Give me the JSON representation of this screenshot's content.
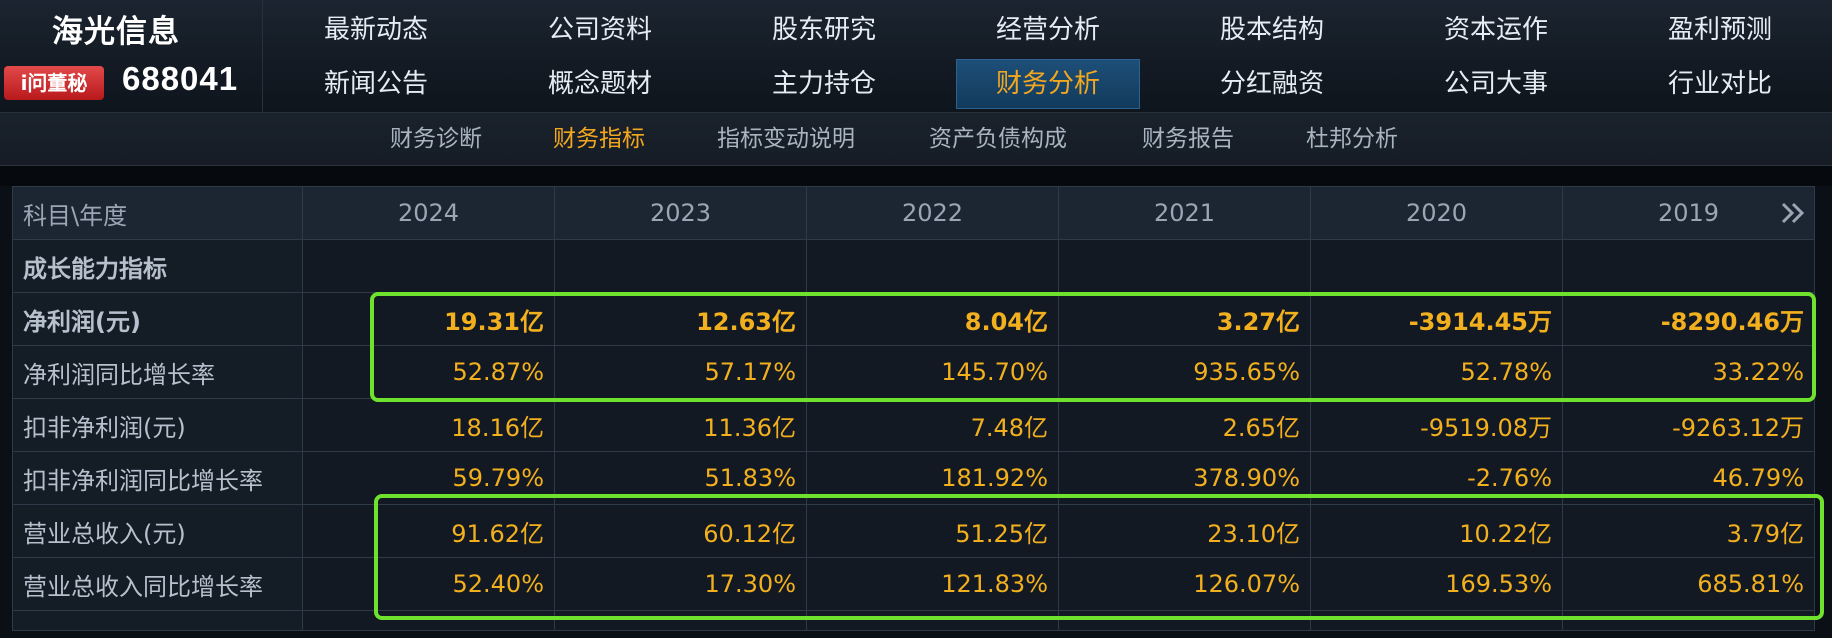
{
  "header": {
    "company_name": "海光信息",
    "badge": "i问董秘",
    "stock_code": "688041",
    "nav_row1": [
      "最新动态",
      "公司资料",
      "股东研究",
      "经营分析",
      "股本结构",
      "资本运作",
      "盈利预测"
    ],
    "nav_row2": [
      "新闻公告",
      "概念题材",
      "主力持仓",
      "财务分析",
      "分红融资",
      "公司大事",
      "行业对比"
    ],
    "active_nav": "财务分析"
  },
  "subnav": {
    "items": [
      "财务诊断",
      "财务指标",
      "指标变动说明",
      "资产负债构成",
      "财务报告",
      "杜邦分析"
    ],
    "active": "财务指标"
  },
  "table": {
    "corner": "科目\\年度",
    "years": [
      "2024",
      "2023",
      "2022",
      "2021",
      "2020",
      "2019"
    ],
    "rows": [
      {
        "label": "成长能力指标",
        "values": [
          "",
          "",
          "",
          "",
          "",
          ""
        ]
      },
      {
        "label": "净利润(元)",
        "values": [
          "19.31亿",
          "12.63亿",
          "8.04亿",
          "3.27亿",
          "-3914.45万",
          "-8290.46万"
        ]
      },
      {
        "label": "净利润同比增长率",
        "values": [
          "52.87%",
          "57.17%",
          "145.70%",
          "935.65%",
          "52.78%",
          "33.22%"
        ]
      },
      {
        "label": "扣非净利润(元)",
        "values": [
          "18.16亿",
          "11.36亿",
          "7.48亿",
          "2.65亿",
          "-9519.08万",
          "-9263.12万"
        ]
      },
      {
        "label": "扣非净利润同比增长率",
        "values": [
          "59.79%",
          "51.83%",
          "181.92%",
          "378.90%",
          "-2.76%",
          "46.79%"
        ]
      },
      {
        "label": "营业总收入(元)",
        "values": [
          "91.62亿",
          "60.12亿",
          "51.25亿",
          "23.10亿",
          "10.22亿",
          "3.79亿"
        ]
      },
      {
        "label": "营业总收入同比增长率",
        "values": [
          "52.40%",
          "17.30%",
          "121.83%",
          "126.07%",
          "169.53%",
          "685.81%"
        ]
      }
    ]
  },
  "colors": {
    "accent": "#f3a71f",
    "highlight_box": "#6fe22e",
    "active_nav_bg": "#1d4f78"
  },
  "icons": {
    "more": "double-chevron-right-icon"
  }
}
